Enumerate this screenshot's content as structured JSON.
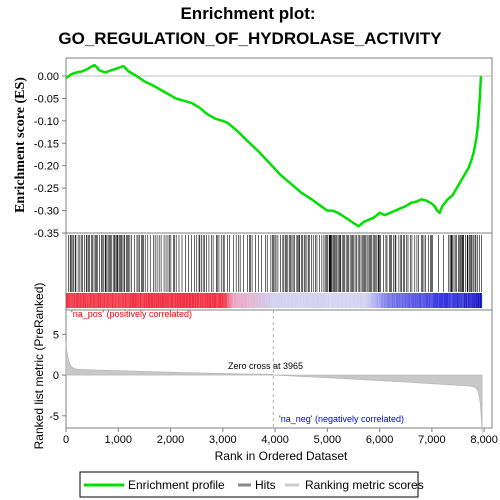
{
  "title_line1": "Enrichment plot:",
  "title_line2": "GO_REGULATION_OF_HYDROLASE_ACTIVITY",
  "chart_data": {
    "type": "line",
    "es_panel": {
      "ylabel": "Enrichment score (ES)",
      "yticks": [
        "0.00",
        "-0.05",
        "-0.10",
        "-0.15",
        "-0.20",
        "-0.25",
        "-0.30",
        "-0.35"
      ],
      "ylim": [
        -0.35,
        0.025
      ],
      "xlim": [
        0,
        8150
      ],
      "grid": false,
      "series": [
        {
          "name": "Enrichment profile",
          "color": "#00e000",
          "x": [
            0,
            100,
            200,
            300,
            400,
            500,
            550,
            650,
            750,
            850,
            950,
            1050,
            1100,
            1200,
            1350,
            1500,
            1650,
            1800,
            1950,
            2100,
            2250,
            2400,
            2550,
            2700,
            2850,
            3000,
            3100,
            3300,
            3500,
            3700,
            3900,
            4100,
            4300,
            4500,
            4700,
            4900,
            5000,
            5100,
            5200,
            5300,
            5400,
            5500,
            5600,
            5700,
            5800,
            5900,
            6000,
            6100,
            6200,
            6300,
            6400,
            6500,
            6600,
            6700,
            6800,
            6900,
            7000,
            7050,
            7100,
            7150,
            7200,
            7300,
            7400,
            7500,
            7600,
            7700,
            7750,
            7800,
            7850,
            7880,
            7900,
            7920,
            7940
          ],
          "y": [
            -0.005,
            0.004,
            0.008,
            0.01,
            0.015,
            0.022,
            0.024,
            0.012,
            0.008,
            0.012,
            0.016,
            0.02,
            0.022,
            0.01,
            0.0,
            -0.012,
            -0.02,
            -0.03,
            -0.04,
            -0.05,
            -0.055,
            -0.06,
            -0.07,
            -0.085,
            -0.095,
            -0.1,
            -0.105,
            -0.125,
            -0.148,
            -0.17,
            -0.195,
            -0.22,
            -0.24,
            -0.26,
            -0.275,
            -0.292,
            -0.3,
            -0.3,
            -0.305,
            -0.312,
            -0.32,
            -0.328,
            -0.335,
            -0.325,
            -0.32,
            -0.315,
            -0.305,
            -0.31,
            -0.305,
            -0.3,
            -0.295,
            -0.29,
            -0.283,
            -0.28,
            -0.275,
            -0.278,
            -0.285,
            -0.29,
            -0.3,
            -0.305,
            -0.29,
            -0.275,
            -0.265,
            -0.245,
            -0.225,
            -0.205,
            -0.19,
            -0.17,
            -0.14,
            -0.11,
            -0.08,
            -0.04,
            0.0
          ]
        }
      ]
    },
    "hits_panel": {
      "hits_color": "#000000",
      "gradient_colors": [
        "#f03040",
        "#f0a0c0",
        "#d0d0f0",
        "#3030e0"
      ]
    },
    "rank_panel": {
      "ylabel": "Ranked list metric (PreRanked)",
      "xlabel": "Rank in Ordered Dataset",
      "yticks": [
        "5",
        "0",
        "-5"
      ],
      "ylim": [
        -6.5,
        8
      ],
      "xticks": [
        "0",
        "1,000",
        "2,000",
        "3,000",
        "4,000",
        "5,000",
        "6,000",
        "7,000",
        "8,000"
      ],
      "zero_cross_label": "Zero cross at 3965",
      "zero_cross": 3965,
      "pos_label": "'na_pos' (positively correlated)",
      "neg_label": "'na_neg' (negatively correlated)",
      "pos_color": "#ff0000",
      "neg_color": "#0000ff",
      "metric_color": "#c8c8c8"
    }
  },
  "legend": {
    "items": [
      {
        "label": "Enrichment profile",
        "color": "#00e000"
      },
      {
        "label": "Hits",
        "color": "#888888"
      },
      {
        "label": "Ranking metric scores",
        "color": "#cccccc"
      }
    ]
  }
}
